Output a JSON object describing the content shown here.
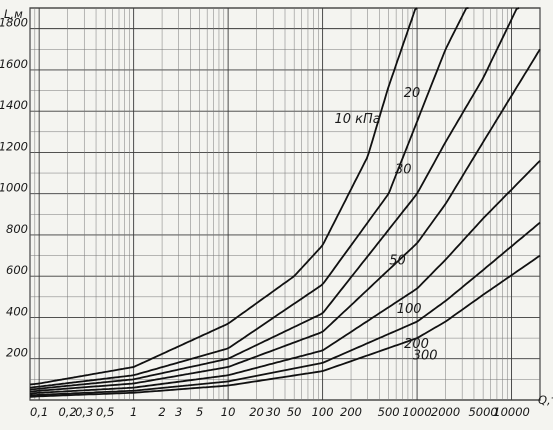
{
  "chart_data": {
    "type": "line",
    "x_scale": "log",
    "grid": true,
    "xlabel": "Q,т",
    "ylabel": "L,м",
    "x_ticks": [
      {
        "value": 0.1,
        "label": "0,1"
      },
      {
        "value": 0.2,
        "label": "0,2"
      },
      {
        "value": 0.3,
        "label": "0,3"
      },
      {
        "value": 0.5,
        "label": "0,5"
      },
      {
        "value": 1,
        "label": "1"
      },
      {
        "value": 2,
        "label": "2"
      },
      {
        "value": 3,
        "label": "3"
      },
      {
        "value": 5,
        "label": "5"
      },
      {
        "value": 10,
        "label": "10"
      },
      {
        "value": 20,
        "label": "20"
      },
      {
        "value": 30,
        "label": "30"
      },
      {
        "value": 50,
        "label": "50"
      },
      {
        "value": 100,
        "label": "100"
      },
      {
        "value": 200,
        "label": "200"
      },
      {
        "value": 500,
        "label": "500"
      },
      {
        "value": 1000,
        "label": "1000"
      },
      {
        "value": 2000,
        "label": "2000"
      },
      {
        "value": 5000,
        "label": "5000"
      },
      {
        "value": 10000,
        "label": "10000"
      }
    ],
    "y_ticks": [
      {
        "value": 200,
        "label": "200"
      },
      {
        "value": 400,
        "label": "400"
      },
      {
        "value": 600,
        "label": "600"
      },
      {
        "value": 800,
        "label": "800"
      },
      {
        "value": 1000,
        "label": "1000"
      },
      {
        "value": 1200,
        "label": "1200"
      },
      {
        "value": 1400,
        "label": "1400"
      },
      {
        "value": 1600,
        "label": "1600"
      },
      {
        "value": 1800,
        "label": "1800"
      }
    ],
    "x_range": [
      0.08,
      20000
    ],
    "y_range": [
      0,
      1900
    ],
    "series": [
      {
        "name": "10 кПа",
        "x": [
          0.08,
          0.1,
          1,
          10,
          50,
          100,
          300,
          500,
          1000
        ],
        "y": [
          75,
          80,
          160,
          370,
          600,
          750,
          1180,
          1520,
          1920
        ]
      },
      {
        "name": "20",
        "x": [
          0.08,
          0.1,
          1,
          10,
          100,
          500,
          1000,
          2000,
          3500
        ],
        "y": [
          60,
          65,
          120,
          250,
          560,
          1000,
          1350,
          1700,
          1920
        ]
      },
      {
        "name": "30",
        "x": [
          0.08,
          0.1,
          1,
          10,
          100,
          1000,
          2000,
          5000,
          12000
        ],
        "y": [
          50,
          55,
          100,
          200,
          420,
          1000,
          1250,
          1560,
          1920
        ]
      },
      {
        "name": "50",
        "x": [
          0.08,
          0.1,
          1,
          10,
          100,
          1000,
          2000,
          5000,
          20000
        ],
        "y": [
          40,
          45,
          80,
          160,
          330,
          760,
          950,
          1250,
          1700
        ]
      },
      {
        "name": "100",
        "x": [
          0.08,
          0.1,
          1,
          10,
          100,
          1000,
          2000,
          5000,
          20000
        ],
        "y": [
          30,
          35,
          60,
          120,
          240,
          540,
          680,
          880,
          1160
        ]
      },
      {
        "name": "200",
        "x": [
          0.08,
          0.1,
          1,
          10,
          100,
          1000,
          2000,
          5000,
          20000
        ],
        "y": [
          22,
          25,
          45,
          90,
          180,
          380,
          480,
          630,
          860
        ]
      },
      {
        "name": "300",
        "x": [
          0.08,
          0.1,
          1,
          10,
          100,
          1000,
          2000,
          5000,
          20000
        ],
        "y": [
          15,
          18,
          35,
          70,
          140,
          300,
          380,
          510,
          700
        ]
      }
    ]
  }
}
